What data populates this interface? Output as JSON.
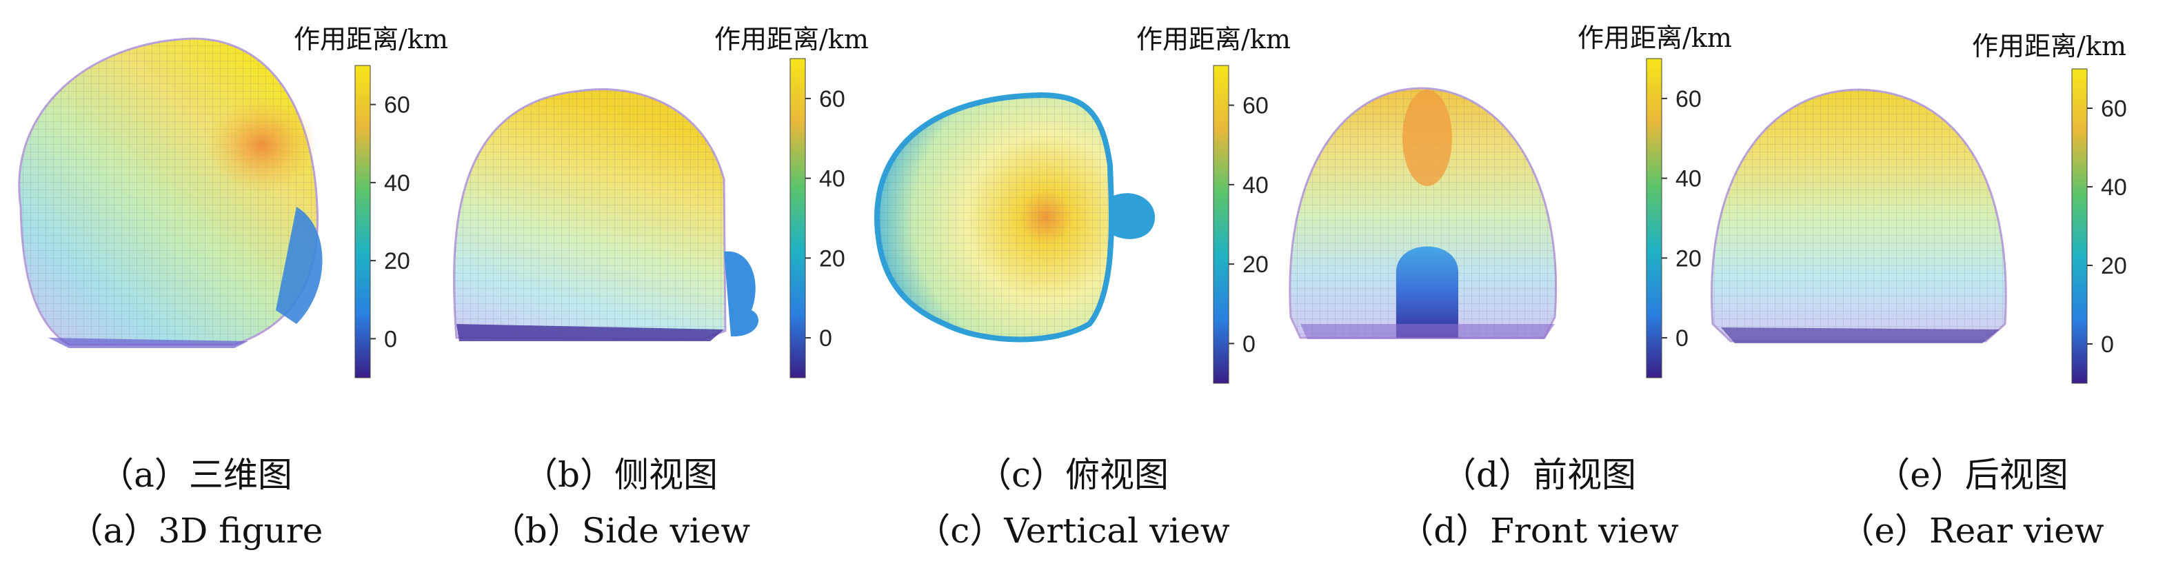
{
  "colorbar": {
    "title": "作用距离/km",
    "min": -10,
    "max": 70,
    "ticks": [
      0,
      20,
      40,
      60
    ],
    "colors": [
      "#3a1e86",
      "#2b7fe0",
      "#1fb1c4",
      "#5cc46a",
      "#e8b83a",
      "#f5e51a"
    ]
  },
  "panels": [
    {
      "id": "a",
      "shape": "3d",
      "caption_cn": "（a）三维图",
      "caption_en": "（a）3D figure"
    },
    {
      "id": "b",
      "shape": "side",
      "caption_cn": "（b）侧视图",
      "caption_en": "（b）Side view"
    },
    {
      "id": "c",
      "shape": "top",
      "caption_cn": "（c）俯视图",
      "caption_en": "（c）Vertical view"
    },
    {
      "id": "d",
      "shape": "front",
      "caption_cn": "（d）前视图",
      "caption_en": "（d）Front view"
    },
    {
      "id": "e",
      "shape": "rear",
      "caption_cn": "（e）后视图",
      "caption_en": "（e）Rear view"
    }
  ]
}
